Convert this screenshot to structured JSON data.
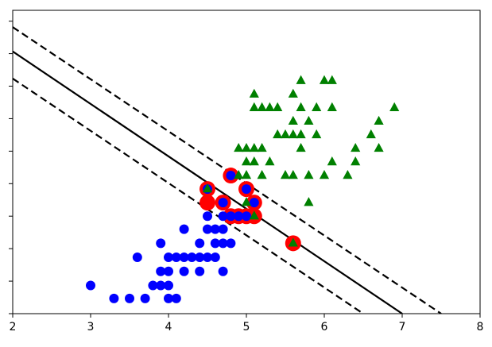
{
  "chart_data": {
    "type": "scatter",
    "title": "",
    "xlabel": "",
    "ylabel": "",
    "xlim": [
      2,
      8
    ],
    "ylim": [
      -0.4,
      5.2
    ],
    "grid": false,
    "x_ticks": [
      2,
      3,
      4,
      5,
      6,
      7,
      8
    ],
    "x_tick_labels": [
      "2",
      "3",
      "4",
      "5",
      "6",
      "7",
      "8"
    ],
    "y_ticks": [
      -0.4,
      0.2,
      0.8,
      1.4,
      2.0,
      2.6,
      3.2,
      3.8,
      4.4,
      5.0
    ],
    "y_tick_labels": [
      "",
      "",
      "",
      "",
      "",
      "",
      "",
      "",
      "",
      ""
    ],
    "colors": {
      "class_0": "#0000ff",
      "class_1": "#008000",
      "support_vector_ring": "#ff0000",
      "boundary": "#000000"
    },
    "series": [
      {
        "marker": "circle",
        "color": "#0000ff",
        "points": [
          [
            3.0,
            0.12
          ],
          [
            3.3,
            -0.12
          ],
          [
            3.5,
            -0.12
          ],
          [
            3.7,
            -0.12
          ],
          [
            4.0,
            -0.12
          ],
          [
            4.1,
            -0.12
          ],
          [
            3.8,
            0.12
          ],
          [
            3.9,
            0.12
          ],
          [
            4.0,
            0.12
          ],
          [
            3.6,
            0.64
          ],
          [
            3.9,
            0.38
          ],
          [
            4.0,
            0.38
          ],
          [
            4.2,
            0.38
          ],
          [
            4.4,
            0.38
          ],
          [
            4.7,
            0.38
          ],
          [
            4.0,
            0.64
          ],
          [
            4.1,
            0.64
          ],
          [
            4.2,
            0.64
          ],
          [
            4.3,
            0.64
          ],
          [
            4.4,
            0.64
          ],
          [
            4.5,
            0.64
          ],
          [
            4.6,
            0.64
          ],
          [
            3.9,
            0.9
          ],
          [
            4.4,
            0.9
          ],
          [
            4.6,
            0.9
          ],
          [
            4.7,
            0.9
          ],
          [
            4.8,
            0.9
          ],
          [
            4.2,
            1.16
          ],
          [
            4.5,
            1.16
          ],
          [
            4.6,
            1.16
          ],
          [
            4.7,
            1.16
          ],
          [
            4.5,
            1.4
          ],
          [
            4.7,
            1.4
          ],
          [
            4.8,
            1.4
          ],
          [
            4.9,
            1.4
          ],
          [
            5.0,
            1.4
          ],
          [
            4.7,
            1.65
          ],
          [
            5.1,
            1.65
          ],
          [
            4.5,
            1.9
          ],
          [
            5.0,
            1.9
          ],
          [
            4.8,
            2.15
          ]
        ]
      },
      {
        "marker": "triangle",
        "color": "#008000",
        "points": [
          [
            5.8,
            1.65
          ],
          [
            5.6,
            0.9
          ],
          [
            4.5,
            1.9
          ],
          [
            5.0,
            1.65
          ],
          [
            5.1,
            1.4
          ],
          [
            4.9,
            2.15
          ],
          [
            5.0,
            2.15
          ],
          [
            5.2,
            2.15
          ],
          [
            5.5,
            2.15
          ],
          [
            5.6,
            2.15
          ],
          [
            5.8,
            2.15
          ],
          [
            6.0,
            2.15
          ],
          [
            6.3,
            2.15
          ],
          [
            5.0,
            2.4
          ],
          [
            5.1,
            2.4
          ],
          [
            5.3,
            2.4
          ],
          [
            6.1,
            2.4
          ],
          [
            6.4,
            2.4
          ],
          [
            4.9,
            2.65
          ],
          [
            5.0,
            2.65
          ],
          [
            5.1,
            2.65
          ],
          [
            5.2,
            2.65
          ],
          [
            5.7,
            2.65
          ],
          [
            6.4,
            2.65
          ],
          [
            6.7,
            2.65
          ],
          [
            5.4,
            2.9
          ],
          [
            5.5,
            2.9
          ],
          [
            5.6,
            2.9
          ],
          [
            5.7,
            2.9
          ],
          [
            5.9,
            2.9
          ],
          [
            6.6,
            2.9
          ],
          [
            5.6,
            3.15
          ],
          [
            5.8,
            3.15
          ],
          [
            6.7,
            3.15
          ],
          [
            5.1,
            3.4
          ],
          [
            5.2,
            3.4
          ],
          [
            5.3,
            3.4
          ],
          [
            5.4,
            3.4
          ],
          [
            5.7,
            3.4
          ],
          [
            5.9,
            3.4
          ],
          [
            6.1,
            3.4
          ],
          [
            6.9,
            3.4
          ],
          [
            5.1,
            3.65
          ],
          [
            5.6,
            3.65
          ],
          [
            5.7,
            3.9
          ],
          [
            6.0,
            3.9
          ],
          [
            6.1,
            3.9
          ]
        ]
      }
    ],
    "support_vectors": [
      [
        4.5,
        1.9
      ],
      [
        4.5,
        1.65
      ],
      [
        4.7,
        1.65
      ],
      [
        4.8,
        2.15
      ],
      [
        4.8,
        1.4
      ],
      [
        4.9,
        1.4
      ],
      [
        5.0,
        1.4
      ],
      [
        5.1,
        1.4
      ],
      [
        5.0,
        1.9
      ],
      [
        5.1,
        1.65
      ],
      [
        5.6,
        0.9
      ]
    ],
    "lines": [
      {
        "role": "decision-boundary",
        "style": "solid",
        "points": [
          [
            2.0,
            4.44
          ],
          [
            7.0,
            -0.4
          ]
        ]
      },
      {
        "role": "margin-upper",
        "style": "dashed",
        "points": [
          [
            2.0,
            4.89
          ],
          [
            7.5,
            -0.4
          ]
        ]
      },
      {
        "role": "margin-lower",
        "style": "dashed",
        "points": [
          [
            2.0,
            3.94
          ],
          [
            6.5,
            -0.4
          ]
        ]
      }
    ]
  }
}
